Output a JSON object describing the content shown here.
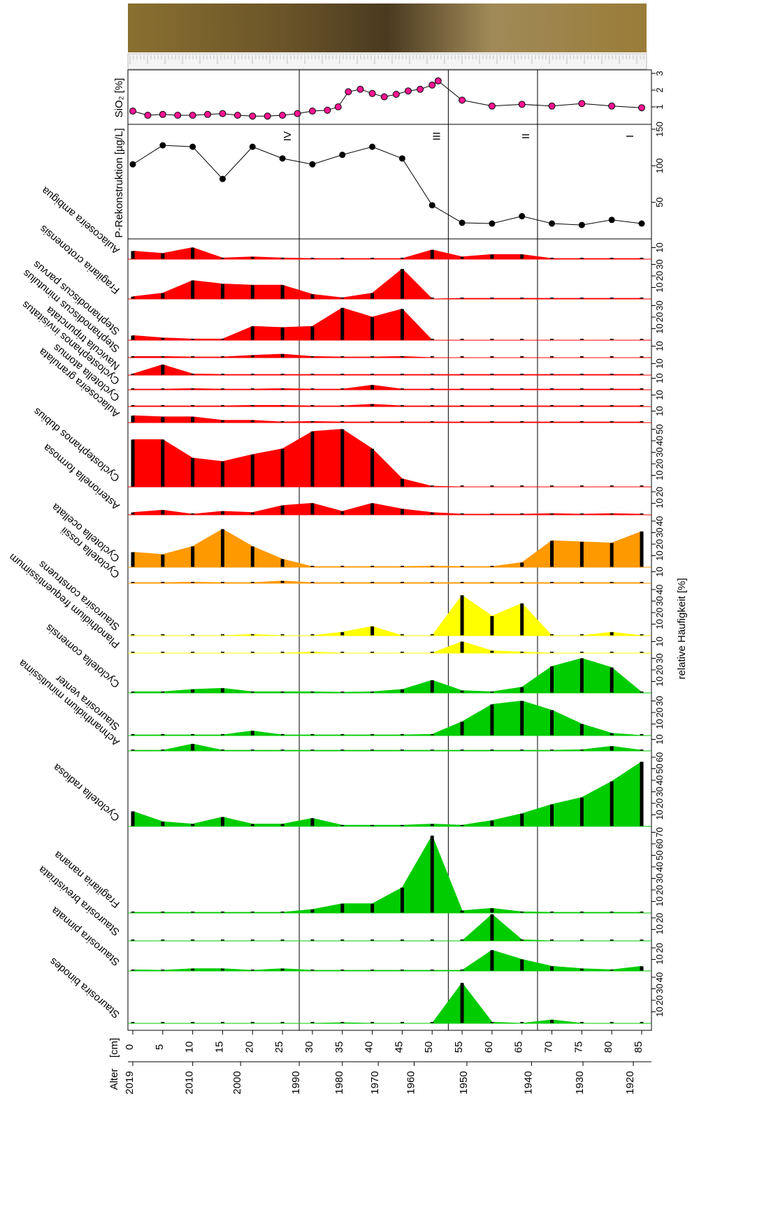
{
  "chart_data": {
    "type": "stratigraphic",
    "x_label": "[cm]",
    "x": [
      0,
      5,
      10,
      15,
      20,
      25,
      30,
      35,
      40,
      45,
      50,
      55,
      60,
      65,
      70,
      75,
      80,
      85
    ],
    "xlim": [
      0,
      85
    ],
    "xticks": [
      0,
      5,
      10,
      15,
      20,
      25,
      30,
      35,
      40,
      45,
      50,
      55,
      60,
      65,
      70,
      75,
      80,
      85
    ],
    "age_label": "Alter",
    "age_ticks": [
      2019,
      2010,
      2000,
      1990,
      1980,
      1970,
      1960,
      1950,
      1940,
      1930,
      1920
    ],
    "age_depths": [
      0,
      10,
      18,
      27.8,
      35,
      41,
      47,
      55.8,
      66.6,
      75.2,
      83.6
    ],
    "value_label": "relative Häufigkeit [%]",
    "zone_boundaries": [
      27.8,
      52.7,
      67.6
    ],
    "zones": [
      "IV",
      "III",
      "II",
      "I"
    ],
    "sio2": {
      "label": "SiO₂ [%]",
      "color": "#ff1493",
      "x": [
        0,
        2.5,
        5,
        7.5,
        10,
        12.5,
        15,
        17.5,
        20,
        22.5,
        25,
        27.5,
        30,
        32.5,
        34.3,
        36,
        38,
        40,
        42,
        44,
        46,
        48,
        50,
        51,
        55,
        60,
        65,
        70,
        75,
        80,
        85
      ],
      "values": [
        0.75,
        0.5,
        0.55,
        0.5,
        0.5,
        0.55,
        0.6,
        0.5,
        0.45,
        0.45,
        0.5,
        0.6,
        0.75,
        0.8,
        1.0,
        1.9,
        2.05,
        1.8,
        1.6,
        1.75,
        1.95,
        2.05,
        2.3,
        2.55,
        1.4,
        1.05,
        1.15,
        1.05,
        1.2,
        1.05,
        0.95
      ],
      "ylim": [
        0,
        3
      ],
      "yticks": [
        1,
        2,
        3
      ]
    },
    "p": {
      "label": "P-Rekonstruktion [µg/L]",
      "values": [
        102,
        128,
        126,
        82,
        126,
        110,
        102,
        115,
        126,
        110,
        46,
        22,
        21,
        31,
        21,
        19,
        26,
        21
      ],
      "ylim": [
        0,
        150
      ],
      "yticks": [
        50,
        100,
        150
      ]
    },
    "taxa": [
      {
        "name": "Aulacoseira ambigua",
        "color": "#ff0000",
        "values": [
          7,
          5,
          10,
          1,
          2,
          1,
          0.5,
          0.5,
          0.5,
          0.5,
          8,
          2,
          4,
          4,
          0.5,
          0.5,
          0.5,
          0.5
        ],
        "ylim": [
          0,
          12
        ],
        "yticks": [
          10
        ]
      },
      {
        "name": "Fragilaria crotonensis",
        "color": "#ff0000",
        "values": [
          2,
          5,
          16,
          13,
          12,
          12,
          4,
          1,
          5,
          26,
          0,
          0.5,
          0.5,
          0.5,
          0.5,
          0.5,
          0.5,
          0.5
        ],
        "ylim": [
          0,
          32
        ],
        "yticks": [
          10,
          20,
          30
        ]
      },
      {
        "name": "Stephanodiscus parvus",
        "color": "#ff0000",
        "values": [
          4,
          2,
          1,
          1,
          12,
          11,
          12,
          28,
          20,
          27,
          0,
          0,
          0,
          0,
          0,
          0,
          0,
          0
        ],
        "ylim": [
          0,
          32
        ],
        "yticks": [
          10,
          20,
          30
        ]
      },
      {
        "name": "Stephanodiscus minutulus",
        "color": "#ff0000",
        "values": [
          1,
          1,
          0.5,
          0.5,
          2,
          3,
          1,
          0.5,
          0.5,
          1,
          0,
          0,
          0,
          0,
          0,
          0,
          0,
          0
        ],
        "ylim": [
          0,
          12
        ],
        "yticks": [
          10
        ]
      },
      {
        "name": "Navicula tripunctata",
        "color": "#ff0000",
        "values": [
          1,
          9,
          1,
          0.5,
          0.5,
          0.5,
          0.5,
          0.5,
          0.5,
          0.5,
          0.5,
          0.5,
          0.5,
          0.5,
          0.5,
          0.5,
          0.5,
          0.5
        ],
        "ylim": [
          0,
          12
        ],
        "yticks": [
          10
        ]
      },
      {
        "name": "Cyclostephanos invisitatus",
        "color": "#ff0000",
        "values": [
          0.5,
          0.5,
          1,
          0.5,
          0.5,
          1,
          0.5,
          0.5,
          4,
          0.5,
          0.5,
          0.5,
          0.5,
          0.5,
          0.5,
          0.5,
          0.5,
          0.5
        ],
        "ylim": [
          0,
          12
        ],
        "yticks": [
          10
        ]
      },
      {
        "name": "Cyclotella atomus",
        "color": "#ff0000",
        "values": [
          0.5,
          0.5,
          0.5,
          0.5,
          1,
          1,
          0.5,
          0.5,
          2,
          0.5,
          0.5,
          0.5,
          0.5,
          0.5,
          0.5,
          0.5,
          0.5,
          0.5
        ],
        "ylim": [
          0,
          12
        ],
        "yticks": [
          10
        ]
      },
      {
        "name": "Aulacoseira granulata",
        "color": "#ff0000",
        "values": [
          6,
          5,
          5,
          2,
          2,
          0.5,
          1,
          0.5,
          0.5,
          0.5,
          0.5,
          0.5,
          0.5,
          0.5,
          0.5,
          0.5,
          0.5,
          0.5
        ],
        "ylim": [
          0,
          12
        ],
        "yticks": [
          10
        ]
      },
      {
        "name": "Cyclostephanos dubius",
        "color": "#ff0000",
        "values": [
          41,
          41,
          25,
          22,
          28,
          33,
          48,
          50,
          33,
          7,
          0.5,
          0,
          0,
          0,
          0,
          0,
          0,
          0
        ],
        "ylim": [
          0,
          52
        ],
        "yticks": [
          10,
          20,
          30,
          40,
          50
        ]
      },
      {
        "name": "Asterionella formosa",
        "color": "#ff0000",
        "values": [
          2,
          4,
          0.5,
          3,
          2,
          8,
          10,
          3,
          10,
          5,
          2,
          0.5,
          0.5,
          0.5,
          1,
          0.5,
          1,
          0.5
        ],
        "ylim": [
          0,
          24
        ],
        "yticks": [
          10,
          20
        ]
      },
      {
        "name": "Cyclotella ocellata",
        "color": "#ff9900",
        "values": [
          13,
          11,
          18,
          33,
          18,
          7,
          0.5,
          0.5,
          0.5,
          0.5,
          1,
          0.5,
          0.5,
          4,
          23,
          22,
          21,
          31
        ],
        "ylim": [
          0,
          42
        ],
        "yticks": [
          10,
          20,
          30,
          40
        ]
      },
      {
        "name": "Cyclotella rossii",
        "color": "#ff9900",
        "values": [
          0.5,
          0.5,
          1,
          0.5,
          0.5,
          2,
          0.5,
          0.5,
          0.5,
          0.5,
          0.5,
          0.5,
          0.5,
          0.5,
          0.5,
          0.5,
          0.5,
          0.5
        ],
        "ylim": [
          0,
          12
        ],
        "yticks": [
          10
        ]
      },
      {
        "name": "Staurosira construens",
        "color": "#ffff00",
        "values": [
          0,
          0,
          0,
          0,
          1,
          0,
          0,
          3,
          8,
          0,
          0,
          35,
          17,
          28,
          0,
          0,
          3,
          0
        ],
        "ylim": [
          0,
          42
        ],
        "yticks": [
          10,
          20,
          30,
          40
        ]
      },
      {
        "name": "Planothidium frequentissimum",
        "color": "#ffff00",
        "values": [
          0,
          0,
          0,
          0,
          0,
          0,
          1,
          0,
          0,
          0,
          0,
          10,
          2,
          1,
          0,
          0,
          0,
          0
        ],
        "ylim": [
          0,
          12
        ],
        "yticks": [
          10
        ]
      },
      {
        "name": "Cyclotella comensis",
        "color": "#00cc00",
        "values": [
          1,
          1,
          3,
          4,
          1,
          1,
          1,
          0.5,
          1,
          3,
          11,
          2,
          1,
          5,
          23,
          30,
          22,
          0.5
        ],
        "ylim": [
          0,
          32
        ],
        "yticks": [
          10,
          20,
          30
        ]
      },
      {
        "name": "Staurosira venter",
        "color": "#00cc00",
        "values": [
          0.5,
          0.5,
          0.5,
          0.5,
          4,
          0.5,
          0.5,
          0.5,
          0.5,
          0.5,
          1,
          12,
          27,
          30,
          22,
          10,
          2,
          0
        ],
        "ylim": [
          0,
          32
        ],
        "yticks": [
          10,
          20,
          30
        ]
      },
      {
        "name": "Achnanthidium minutissima",
        "color": "#00cc00",
        "values": [
          0.5,
          0.5,
          6,
          0.5,
          0.5,
          0.5,
          0.5,
          0.5,
          0.5,
          0.5,
          0.5,
          0.5,
          0.5,
          0.5,
          0.5,
          1,
          4,
          0.5
        ],
        "ylim": [
          0,
          12
        ],
        "yticks": [
          10
        ]
      },
      {
        "name": "Cyclotella radiosa",
        "color": "#00cc00",
        "values": [
          13,
          4,
          2,
          8,
          2,
          2,
          7,
          1,
          1,
          1,
          2,
          1,
          5,
          11,
          19,
          25,
          39,
          56
        ],
        "ylim": [
          0,
          62
        ],
        "yticks": [
          10,
          20,
          30,
          40,
          50,
          60
        ]
      },
      {
        "name": "Fragilaria nanana",
        "color": "#00cc00",
        "values": [
          0.5,
          0.5,
          0.5,
          0.5,
          0.5,
          0.5,
          3,
          8,
          8,
          22,
          67,
          2,
          4,
          1,
          0.5,
          0.5,
          0.5,
          0.5
        ],
        "ylim": [
          0,
          72
        ],
        "yticks": [
          10,
          20,
          30,
          40,
          50,
          60,
          70
        ]
      },
      {
        "name": "Staurosira brevistriata",
        "color": "#00cc00",
        "values": [
          0,
          0,
          0,
          0,
          0,
          0,
          0,
          0,
          0,
          0,
          0,
          0,
          23,
          1,
          0,
          0,
          0,
          0
        ],
        "ylim": [
          0,
          24
        ],
        "yticks": [
          10,
          20
        ]
      },
      {
        "name": "Staurosira  pinnata",
        "color": "#00cc00",
        "values": [
          1,
          0.5,
          2,
          2,
          0.5,
          2,
          0.5,
          0.5,
          0.5,
          0.5,
          0.5,
          0.5,
          18,
          10,
          4,
          2,
          1,
          4
        ],
        "ylim": [
          0,
          24
        ],
        "yticks": [
          10,
          20
        ]
      },
      {
        "name": "Staurosira binodes",
        "color": "#00cc00",
        "values": [
          0,
          0,
          0,
          0,
          0,
          0,
          0,
          0.5,
          0,
          0,
          0,
          35,
          1,
          0,
          3,
          0,
          0,
          0
        ],
        "ylim": [
          0,
          42
        ],
        "yticks": [
          10,
          20,
          30,
          40
        ]
      }
    ]
  }
}
